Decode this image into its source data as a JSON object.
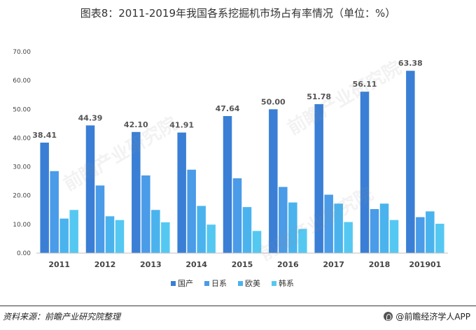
{
  "chart_data": {
    "type": "bar",
    "title": "图表8：2011-2019年我国各系挖掘机市场占有率情况（单位：%）",
    "categories": [
      "2011",
      "2012",
      "2013",
      "2014",
      "2015",
      "2016",
      "2017",
      "2018",
      "201901"
    ],
    "series": [
      {
        "name": "国产",
        "color": "#3a7fd5",
        "values": [
          38.41,
          44.39,
          42.1,
          41.91,
          47.64,
          50.0,
          51.78,
          56.11,
          63.38
        ],
        "labels": [
          "38.41",
          "44.39",
          "42.10",
          "41.91",
          "47.64",
          "50.00",
          "51.78",
          "56.11",
          "63.38"
        ]
      },
      {
        "name": "日系",
        "color": "#4a9be8",
        "values": [
          28.5,
          23.5,
          27.0,
          29.0,
          26.0,
          23.0,
          20.3,
          15.3,
          12.5
        ]
      },
      {
        "name": "欧美",
        "color": "#4ab3ee",
        "values": [
          12.0,
          12.8,
          15.0,
          16.4,
          16.0,
          17.6,
          17.2,
          17.2,
          14.5
        ]
      },
      {
        "name": "韩系",
        "color": "#55c8f2",
        "values": [
          15.0,
          11.5,
          10.7,
          9.9,
          7.7,
          8.4,
          10.8,
          11.5,
          10.2
        ]
      }
    ],
    "y_ticks": [
      "0.00",
      "10.00",
      "20.00",
      "30.00",
      "40.00",
      "50.00",
      "60.00",
      "70.00"
    ],
    "ylim": [
      0,
      70
    ],
    "xlabel": "",
    "ylabel": "",
    "legend_position": "bottom",
    "grid": false
  },
  "footer": {
    "source": "资料来源：前瞻产业研究院整理",
    "brand": "@前瞻经济学人APP"
  },
  "watermark": "前瞻产业研究院"
}
